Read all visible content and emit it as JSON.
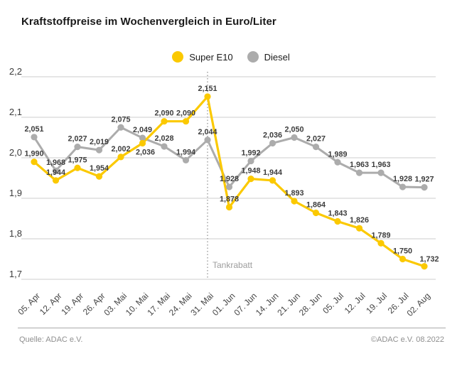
{
  "title": "Kraftstoffpreise im Wochenvergleich in Euro/Liter",
  "legend": {
    "items": [
      {
        "label": "Super E10",
        "color": "#FBC900"
      },
      {
        "label": "Diesel",
        "color": "#ACACAC"
      }
    ]
  },
  "footer": {
    "source": "Quelle: ADAC e.V.",
    "copyright": "©ADAC e.V.  08.2022"
  },
  "chart_data": {
    "type": "line",
    "title": "Kraftstoffpreise im Wochenvergleich in Euro/Liter",
    "unit": "Euro/Liter",
    "categories": [
      "05. Apr",
      "12. Apr",
      "19. Apr",
      "26. Apr",
      "03. Mai",
      "10. Mai",
      "17. Mai",
      "24. Mai",
      "31. Mai",
      "01. Jun",
      "07. Jun",
      "14. Jun",
      "21. Jun",
      "28. Jun",
      "05. Jul",
      "12. Jul",
      "19. Jul",
      "26. Jul",
      "02. Aug"
    ],
    "series": [
      {
        "name": "Super E10",
        "color": "#FBC900",
        "values": [
          1.99,
          1.944,
          1.975,
          1.954,
          2.002,
          2.036,
          2.09,
          2.09,
          2.151,
          1.878,
          1.948,
          1.944,
          1.893,
          1.864,
          1.843,
          1.826,
          1.789,
          1.75,
          1.732
        ]
      },
      {
        "name": "Diesel",
        "color": "#ACACAC",
        "values": [
          2.051,
          1.968,
          2.027,
          2.019,
          2.075,
          2.049,
          2.028,
          1.994,
          2.044,
          1.928,
          1.992,
          2.036,
          2.05,
          2.027,
          1.989,
          1.963,
          1.963,
          1.928,
          1.927
        ]
      }
    ],
    "ylim": [
      1.7,
      2.2
    ],
    "ytick_values": [
      2.2,
      2.1,
      2.0,
      1.9,
      1.8,
      1.7
    ],
    "decimal_separator": ",",
    "grid": true,
    "legend_position": "top-center",
    "annotation": {
      "vline_category_index": 8,
      "label": "Tankrabatt"
    },
    "label_colors": {
      "data_label": "#3d3d3d",
      "axis_label": "#464646",
      "grid_line": "#cdcdcd",
      "annotation": "#9d9d9d"
    }
  }
}
